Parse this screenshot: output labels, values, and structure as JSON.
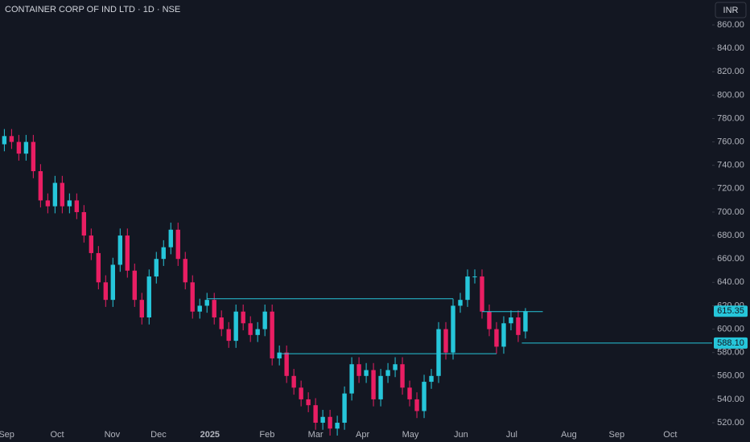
{
  "chart_data": {
    "type": "candlestick",
    "title": "CONTAINER CORP OF IND LTD · 1D · NSE",
    "currency": "INR",
    "up_color": "#26c6da",
    "down_color": "#e91e63",
    "level_color": "#26c6da",
    "open": [
      758,
      765,
      760,
      750,
      760,
      735,
      710,
      705,
      725,
      705,
      710,
      700,
      680,
      665,
      640,
      625,
      655,
      680,
      650,
      625,
      610,
      645,
      660,
      670,
      685,
      660,
      640,
      615,
      620,
      625,
      610,
      600,
      590,
      615,
      605,
      595,
      600,
      615,
      575,
      580,
      560,
      550,
      540,
      535,
      520,
      525,
      515,
      520,
      545,
      570,
      560,
      565,
      540,
      560,
      565,
      570,
      550,
      540,
      530,
      555,
      560,
      600,
      580,
      620,
      625,
      645,
      645,
      615,
      600,
      585,
      605,
      610,
      598
    ],
    "high": [
      771,
      771,
      766,
      766,
      766,
      741,
      716,
      731,
      731,
      716,
      716,
      706,
      686,
      671,
      646,
      661,
      686,
      686,
      656,
      631,
      651,
      666,
      676,
      691,
      691,
      666,
      646,
      626,
      631,
      631,
      616,
      606,
      621,
      621,
      611,
      606,
      621,
      621,
      586,
      586,
      566,
      556,
      546,
      541,
      531,
      531,
      526,
      551,
      576,
      576,
      571,
      571,
      566,
      571,
      576,
      576,
      556,
      546,
      561,
      566,
      606,
      606,
      626,
      631,
      651,
      651,
      651,
      621,
      606,
      611,
      616,
      616,
      618
    ],
    "low": [
      752,
      754,
      744,
      744,
      729,
      704,
      699,
      699,
      699,
      699,
      694,
      674,
      659,
      634,
      619,
      619,
      649,
      644,
      619,
      604,
      604,
      639,
      654,
      664,
      654,
      634,
      609,
      609,
      614,
      604,
      594,
      584,
      584,
      599,
      589,
      589,
      594,
      569,
      569,
      554,
      544,
      534,
      529,
      514,
      514,
      509,
      509,
      514,
      539,
      554,
      554,
      534,
      534,
      554,
      559,
      544,
      534,
      524,
      524,
      549,
      554,
      574,
      574,
      614,
      619,
      639,
      609,
      594,
      579,
      579,
      599,
      589,
      592
    ],
    "close": [
      765,
      760,
      750,
      760,
      735,
      710,
      705,
      725,
      705,
      710,
      700,
      680,
      665,
      640,
      625,
      655,
      680,
      650,
      625,
      610,
      645,
      660,
      670,
      685,
      660,
      640,
      615,
      620,
      625,
      610,
      600,
      590,
      615,
      605,
      595,
      600,
      615,
      575,
      580,
      560,
      550,
      540,
      535,
      520,
      525,
      515,
      520,
      545,
      570,
      560,
      565,
      540,
      560,
      565,
      570,
      550,
      540,
      530,
      555,
      560,
      600,
      580,
      620,
      625,
      645,
      645,
      615,
      600,
      585,
      605,
      610,
      595,
      615.35
    ],
    "xlim": [
      -0.6,
      97.8
    ],
    "ylim": [
      515.9,
      881.3
    ],
    "xticks": [
      {
        "value": 0.3,
        "label": "Sep"
      },
      {
        "value": 7.3,
        "label": "Oct"
      },
      {
        "value": 14.9,
        "label": "Nov"
      },
      {
        "value": 21.3,
        "label": "Dec"
      },
      {
        "value": 28.4,
        "label": "2025"
      },
      {
        "value": 36.3,
        "label": "Feb"
      },
      {
        "value": 43,
        "label": "Mar"
      },
      {
        "value": 49.5,
        "label": "Apr"
      },
      {
        "value": 56.1,
        "label": "May"
      },
      {
        "value": 63.1,
        "label": "Jun"
      },
      {
        "value": 70.1,
        "label": "Jul"
      },
      {
        "value": 78,
        "label": "Aug"
      },
      {
        "value": 84.6,
        "label": "Sep"
      },
      {
        "value": 92,
        "label": "Oct"
      }
    ],
    "yticks": [
      {
        "value": 520,
        "label": "520.00"
      },
      {
        "value": 540,
        "label": "540.00"
      },
      {
        "value": 560,
        "label": "560.00"
      },
      {
        "value": 580,
        "label": "580.00"
      },
      {
        "value": 600,
        "label": "600.00"
      },
      {
        "value": 620,
        "label": "620.00"
      },
      {
        "value": 640,
        "label": "640.00"
      },
      {
        "value": 660,
        "label": "660.00"
      },
      {
        "value": 680,
        "label": "680.00"
      },
      {
        "value": 700,
        "label": "700.00"
      },
      {
        "value": 720,
        "label": "720.00"
      },
      {
        "value": 740,
        "label": "740.00"
      },
      {
        "value": 760,
        "label": "760.00"
      },
      {
        "value": 780,
        "label": "780.00"
      },
      {
        "value": 800,
        "label": "800.00"
      },
      {
        "value": 820,
        "label": "820.00"
      },
      {
        "value": 840,
        "label": "840.00"
      },
      {
        "value": 860,
        "label": "860.00"
      }
    ],
    "levels": [
      {
        "value": 626,
        "from": 28,
        "to": 62
      },
      {
        "value": 579,
        "from": 38,
        "to": 68
      },
      {
        "value": 615,
        "from": 66,
        "to": 74.4
      },
      {
        "value": 588.1,
        "from": 71.5,
        "to": 97.8
      }
    ],
    "price_labels": [
      {
        "value": 615.35,
        "label": "615.35"
      },
      {
        "value": 588.1,
        "label": "588.10"
      }
    ]
  }
}
